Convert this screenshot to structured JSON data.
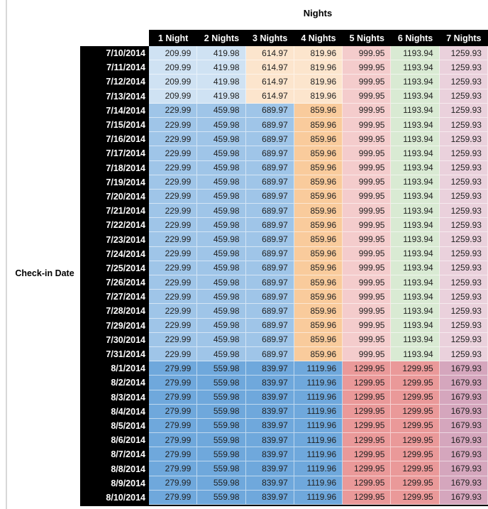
{
  "colors": {
    "header_bg": "#000000",
    "header_text": "#ffffff",
    "row_header_bg": "#000000",
    "left_rule": "#d8d8d8",
    "groups": {
      "jul_early": [
        "#CFE2F3",
        "#CFE2F3",
        "#FCE5CD",
        "#FCE5CD",
        "#F4CCCC",
        "#D9EAD3",
        "#EAD1DC"
      ],
      "jul_peak": [
        "#9FC5E8",
        "#9FC5E8",
        "#9FC5E8",
        "#F9CB9C",
        "#F4CCCC",
        "#D9EAD3",
        "#EAD1DC"
      ],
      "aug": [
        "#6FA8DC",
        "#6FA8DC",
        "#6FA8DC",
        "#6FA8DC",
        "#EA9999",
        "#EA9999",
        "#D5A6BD"
      ]
    }
  },
  "chart_data": {
    "type": "table",
    "title": "Nights",
    "row_label": "Check-in Date",
    "columns": [
      "1 Night",
      "2 Nights",
      "3 Nights",
      "4 Nights",
      "5 Nights",
      "6 Nights",
      "7 Nights"
    ],
    "rows": [
      {
        "date": "7/10/2014",
        "group": "jul_early",
        "values": [
          209.99,
          419.98,
          614.97,
          819.96,
          999.95,
          1193.94,
          1259.93
        ]
      },
      {
        "date": "7/11/2014",
        "group": "jul_early",
        "values": [
          209.99,
          419.98,
          614.97,
          819.96,
          999.95,
          1193.94,
          1259.93
        ]
      },
      {
        "date": "7/12/2014",
        "group": "jul_early",
        "values": [
          209.99,
          419.98,
          614.97,
          819.96,
          999.95,
          1193.94,
          1259.93
        ]
      },
      {
        "date": "7/13/2014",
        "group": "jul_early",
        "values": [
          209.99,
          419.98,
          614.97,
          819.96,
          999.95,
          1193.94,
          1259.93
        ]
      },
      {
        "date": "7/14/2014",
        "group": "jul_peak",
        "values": [
          229.99,
          459.98,
          689.97,
          859.96,
          999.95,
          1193.94,
          1259.93
        ]
      },
      {
        "date": "7/15/2014",
        "group": "jul_peak",
        "values": [
          229.99,
          459.98,
          689.97,
          859.96,
          999.95,
          1193.94,
          1259.93
        ]
      },
      {
        "date": "7/16/2014",
        "group": "jul_peak",
        "values": [
          229.99,
          459.98,
          689.97,
          859.96,
          999.95,
          1193.94,
          1259.93
        ]
      },
      {
        "date": "7/17/2014",
        "group": "jul_peak",
        "values": [
          229.99,
          459.98,
          689.97,
          859.96,
          999.95,
          1193.94,
          1259.93
        ]
      },
      {
        "date": "7/18/2014",
        "group": "jul_peak",
        "values": [
          229.99,
          459.98,
          689.97,
          859.96,
          999.95,
          1193.94,
          1259.93
        ]
      },
      {
        "date": "7/19/2014",
        "group": "jul_peak",
        "values": [
          229.99,
          459.98,
          689.97,
          859.96,
          999.95,
          1193.94,
          1259.93
        ]
      },
      {
        "date": "7/20/2014",
        "group": "jul_peak",
        "values": [
          229.99,
          459.98,
          689.97,
          859.96,
          999.95,
          1193.94,
          1259.93
        ]
      },
      {
        "date": "7/21/2014",
        "group": "jul_peak",
        "values": [
          229.99,
          459.98,
          689.97,
          859.96,
          999.95,
          1193.94,
          1259.93
        ]
      },
      {
        "date": "7/22/2014",
        "group": "jul_peak",
        "values": [
          229.99,
          459.98,
          689.97,
          859.96,
          999.95,
          1193.94,
          1259.93
        ]
      },
      {
        "date": "7/23/2014",
        "group": "jul_peak",
        "values": [
          229.99,
          459.98,
          689.97,
          859.96,
          999.95,
          1193.94,
          1259.93
        ]
      },
      {
        "date": "7/24/2014",
        "group": "jul_peak",
        "values": [
          229.99,
          459.98,
          689.97,
          859.96,
          999.95,
          1193.94,
          1259.93
        ]
      },
      {
        "date": "7/25/2014",
        "group": "jul_peak",
        "values": [
          229.99,
          459.98,
          689.97,
          859.96,
          999.95,
          1193.94,
          1259.93
        ]
      },
      {
        "date": "7/26/2014",
        "group": "jul_peak",
        "values": [
          229.99,
          459.98,
          689.97,
          859.96,
          999.95,
          1193.94,
          1259.93
        ]
      },
      {
        "date": "7/27/2014",
        "group": "jul_peak",
        "values": [
          229.99,
          459.98,
          689.97,
          859.96,
          999.95,
          1193.94,
          1259.93
        ]
      },
      {
        "date": "7/28/2014",
        "group": "jul_peak",
        "values": [
          229.99,
          459.98,
          689.97,
          859.96,
          999.95,
          1193.94,
          1259.93
        ]
      },
      {
        "date": "7/29/2014",
        "group": "jul_peak",
        "values": [
          229.99,
          459.98,
          689.97,
          859.96,
          999.95,
          1193.94,
          1259.93
        ]
      },
      {
        "date": "7/30/2014",
        "group": "jul_peak",
        "values": [
          229.99,
          459.98,
          689.97,
          859.96,
          999.95,
          1193.94,
          1259.93
        ]
      },
      {
        "date": "7/31/2014",
        "group": "jul_peak",
        "values": [
          229.99,
          459.98,
          689.97,
          859.96,
          999.95,
          1193.94,
          1259.93
        ]
      },
      {
        "date": "8/1/2014",
        "group": "aug",
        "values": [
          279.99,
          559.98,
          839.97,
          1119.96,
          1299.95,
          1299.95,
          1679.93
        ]
      },
      {
        "date": "8/2/2014",
        "group": "aug",
        "values": [
          279.99,
          559.98,
          839.97,
          1119.96,
          1299.95,
          1299.95,
          1679.93
        ]
      },
      {
        "date": "8/3/2014",
        "group": "aug",
        "values": [
          279.99,
          559.98,
          839.97,
          1119.96,
          1299.95,
          1299.95,
          1679.93
        ]
      },
      {
        "date": "8/4/2014",
        "group": "aug",
        "values": [
          279.99,
          559.98,
          839.97,
          1119.96,
          1299.95,
          1299.95,
          1679.93
        ]
      },
      {
        "date": "8/5/2014",
        "group": "aug",
        "values": [
          279.99,
          559.98,
          839.97,
          1119.96,
          1299.95,
          1299.95,
          1679.93
        ]
      },
      {
        "date": "8/6/2014",
        "group": "aug",
        "values": [
          279.99,
          559.98,
          839.97,
          1119.96,
          1299.95,
          1299.95,
          1679.93
        ]
      },
      {
        "date": "8/7/2014",
        "group": "aug",
        "values": [
          279.99,
          559.98,
          839.97,
          1119.96,
          1299.95,
          1299.95,
          1679.93
        ]
      },
      {
        "date": "8/8/2014",
        "group": "aug",
        "values": [
          279.99,
          559.98,
          839.97,
          1119.96,
          1299.95,
          1299.95,
          1679.93
        ]
      },
      {
        "date": "8/9/2014",
        "group": "aug",
        "values": [
          279.99,
          559.98,
          839.97,
          1119.96,
          1299.95,
          1299.95,
          1679.93
        ]
      },
      {
        "date": "8/10/2014",
        "group": "aug",
        "values": [
          279.99,
          559.98,
          839.97,
          1119.96,
          1299.95,
          1299.95,
          1679.93
        ]
      }
    ]
  }
}
